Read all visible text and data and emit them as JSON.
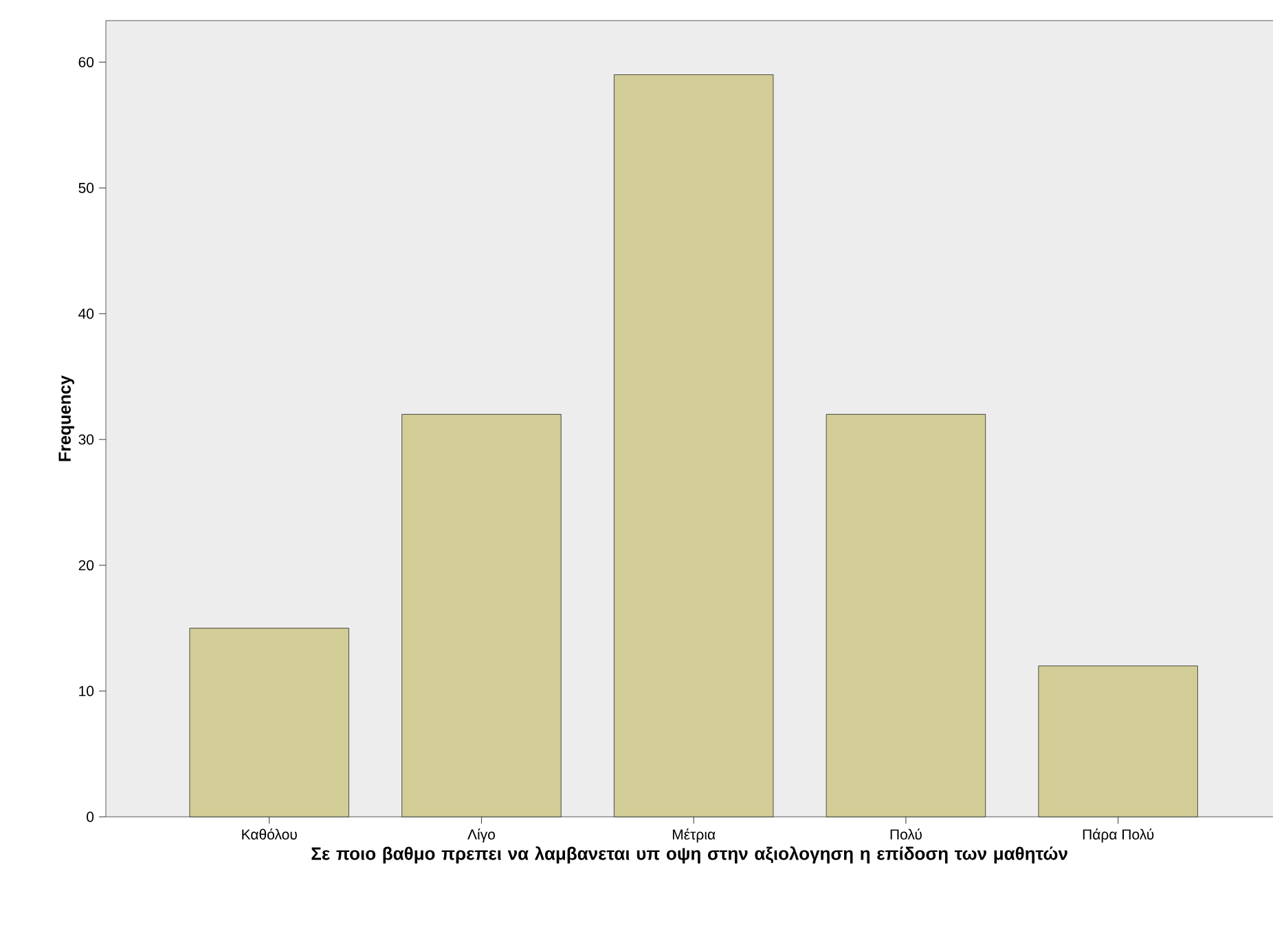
{
  "chart_data": {
    "type": "bar",
    "xlabel": "Σε ποιο βαθμο πρεπει να λαμβανεται υπ οψη στην αξιολογηση η επίδοση των μαθητών",
    "ylabel": "Frequency",
    "categories": [
      "Καθόλου",
      "Λίγο",
      "Μέτρια",
      "Πολύ",
      "Πάρα Πολύ"
    ],
    "values": [
      15,
      32,
      59,
      32,
      12
    ],
    "color": "#d2cd96",
    "ylim": [
      0,
      63.3
    ],
    "yticks": [
      0,
      10,
      20,
      30,
      40,
      50,
      60
    ],
    "grid": false
  }
}
